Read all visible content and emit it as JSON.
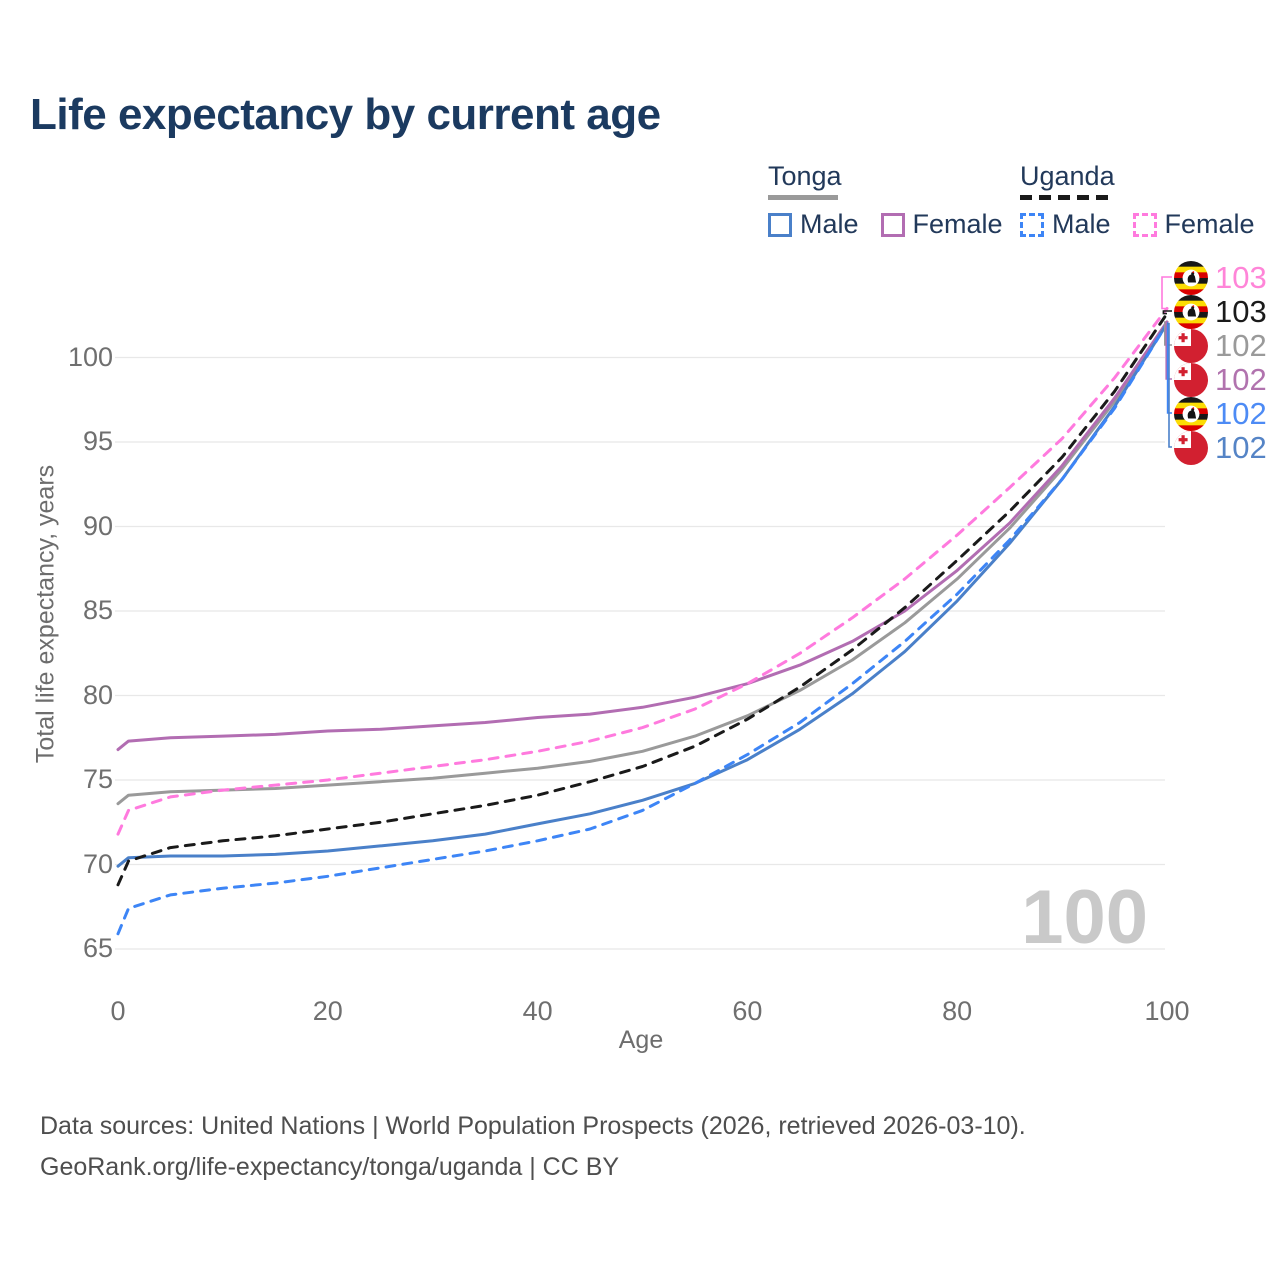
{
  "title": "Life expectancy by current age",
  "legend": {
    "groups": [
      {
        "country": "Tonga",
        "style": "solid",
        "underline_color": "#9a9a9a",
        "items": [
          {
            "label": "Male",
            "color": "#4a80c9"
          },
          {
            "label": "Female",
            "color": "#b26db2"
          }
        ]
      },
      {
        "country": "Uganda",
        "style": "dashed",
        "underline_color": "#1a1a1a",
        "items": [
          {
            "label": "Male",
            "color": "#3d85f6"
          },
          {
            "label": "Female",
            "color": "#ff7ade"
          }
        ]
      }
    ]
  },
  "watermark": "100",
  "footer": {
    "line1": "Data sources: United Nations | World Population Prospects (2026, retrieved 2026-03-10).",
    "line2": "GeoRank.org/life-expectancy/tonga/uganda | CC BY"
  },
  "colors": {
    "title_text": "#1b3a60",
    "axis_text": "#6f6f6f",
    "gridline": "#e8e8e8",
    "watermark": "#c9c9c9",
    "footer_text": "#4e4e4e"
  },
  "chart_data": {
    "type": "line",
    "title": "Life expectancy by current age",
    "xlabel": "Age",
    "ylabel": "Total life expectancy, years",
    "x_ticks": [
      0,
      20,
      40,
      60,
      80,
      100
    ],
    "y_ticks": [
      65,
      70,
      75,
      80,
      85,
      90,
      95,
      100
    ],
    "xlim": [
      0,
      100
    ],
    "ylim": [
      62.5,
      104.5
    ],
    "grid": "horizontal-only",
    "legend_position": "top-right",
    "x": [
      0,
      1,
      5,
      10,
      15,
      20,
      25,
      30,
      35,
      40,
      45,
      50,
      55,
      60,
      65,
      70,
      75,
      80,
      85,
      90,
      95,
      100
    ],
    "series": [
      {
        "id": "tonga-combined",
        "name": "Tonga",
        "color": "#9a9a9a",
        "dash": false,
        "flag": "tonga",
        "end_label": "102",
        "label_color": "#9a9a9a",
        "values": [
          73.6,
          74.1,
          74.3,
          74.4,
          74.5,
          74.7,
          74.9,
          75.1,
          75.4,
          75.7,
          76.1,
          76.7,
          77.6,
          78.8,
          80.3,
          82.1,
          84.3,
          86.9,
          89.9,
          93.4,
          97.4,
          102.1
        ]
      },
      {
        "id": "tonga-female",
        "name": "Tonga Female",
        "color": "#b26db2",
        "dash": false,
        "flag": "tonga",
        "end_label": "102",
        "label_color": "#b173ae",
        "values": [
          76.8,
          77.3,
          77.5,
          77.6,
          77.7,
          77.9,
          78.0,
          78.2,
          78.4,
          78.7,
          78.9,
          79.3,
          79.9,
          80.7,
          81.8,
          83.2,
          85.0,
          87.4,
          90.2,
          93.6,
          97.6,
          102.1
        ]
      },
      {
        "id": "tonga-male",
        "name": "Tonga Male",
        "color": "#4a80c9",
        "dash": false,
        "flag": "tonga",
        "end_label": "102",
        "label_color": "#5584c6",
        "values": [
          69.9,
          70.4,
          70.5,
          70.5,
          70.6,
          70.8,
          71.1,
          71.4,
          71.8,
          72.4,
          73.0,
          73.8,
          74.8,
          76.2,
          78.0,
          80.1,
          82.6,
          85.6,
          89.0,
          92.8,
          97.1,
          102.0
        ]
      },
      {
        "id": "uganda-combined",
        "name": "Uganda",
        "color": "#1a1a1a",
        "dash": true,
        "flag": "uganda",
        "end_label": "103",
        "label_color": "#1a1a1a",
        "values": [
          68.8,
          70.2,
          71.0,
          71.4,
          71.7,
          72.1,
          72.5,
          73.0,
          73.5,
          74.1,
          74.9,
          75.8,
          77.0,
          78.6,
          80.5,
          82.7,
          85.2,
          88.0,
          90.9,
          94.1,
          98.0,
          102.6
        ]
      },
      {
        "id": "uganda-female",
        "name": "Uganda Female",
        "color": "#ff7ade",
        "dash": true,
        "flag": "uganda",
        "end_label": "103",
        "label_color": "#ff85d8",
        "values": [
          71.8,
          73.2,
          74.0,
          74.4,
          74.7,
          75.0,
          75.4,
          75.8,
          76.2,
          76.7,
          77.3,
          78.1,
          79.2,
          80.7,
          82.5,
          84.6,
          86.9,
          89.5,
          92.3,
          95.2,
          98.8,
          102.9
        ]
      },
      {
        "id": "uganda-male",
        "name": "Uganda Male",
        "color": "#3d85f6",
        "dash": true,
        "flag": "uganda",
        "end_label": "102",
        "label_color": "#4d8bf5",
        "values": [
          65.9,
          67.4,
          68.2,
          68.6,
          68.9,
          69.3,
          69.8,
          70.3,
          70.8,
          71.4,
          72.1,
          73.2,
          74.8,
          76.5,
          78.4,
          80.7,
          83.2,
          86.0,
          89.2,
          92.8,
          97.0,
          102.0
        ]
      }
    ],
    "end_label_order": [
      "uganda-female",
      "uganda-combined",
      "tonga-combined",
      "tonga-female",
      "uganda-male",
      "tonga-male"
    ]
  }
}
